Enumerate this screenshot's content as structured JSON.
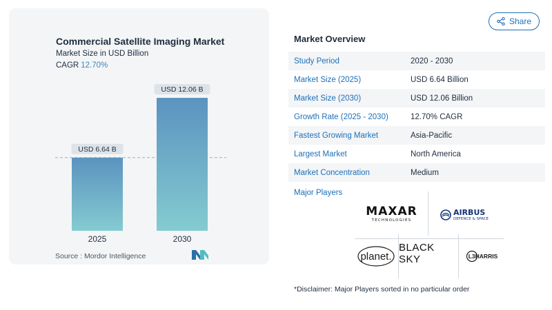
{
  "chart": {
    "title": "Commercial Satellite Imaging Market",
    "subtitle": "Market Size in USD Billion",
    "cagr_label": "CAGR",
    "cagr_value": "12.70%",
    "source": "Source :  Mordor Intelligence"
  },
  "chart_data": {
    "type": "bar",
    "title": "Commercial Satellite Imaging Market",
    "categories": [
      "2025",
      "2030"
    ],
    "values": [
      6.64,
      12.06
    ],
    "data_labels": [
      "USD 6.64 B",
      "USD 12.06 B"
    ],
    "ylabel": "Market Size in USD Billion",
    "ylim": [
      0,
      13.5
    ],
    "reference_line": 6.64,
    "colors": {
      "bar_top": "#5b93bf",
      "bar_bottom": "#84cbd1",
      "reference_line": "#8fb4cf"
    }
  },
  "share": {
    "label": "Share",
    "icon": "share-icon"
  },
  "overview": {
    "title": "Market Overview",
    "rows": [
      {
        "label": "Study Period",
        "value": "2020 - 2030"
      },
      {
        "label": "Market Size (2025)",
        "value": "USD 6.64 Billion"
      },
      {
        "label": "Market Size (2030)",
        "value": "USD 12.06 Billion"
      },
      {
        "label": "Growth Rate (2025 - 2030)",
        "value": "12.70% CAGR"
      },
      {
        "label": "Fastest Growing Market",
        "value": "Asia-Pacific"
      },
      {
        "label": "Largest Market",
        "value": "North America"
      },
      {
        "label": "Market Concentration",
        "value": "Medium"
      }
    ]
  },
  "players": {
    "title": "Major Players",
    "maxar": "MAXAR",
    "maxar_sub": "TECHNOLOGIES",
    "airbus": "AIRBUS",
    "airbus_sub": "DEFENCE & SPACE",
    "planet": "planet.",
    "blacksky": "BLACK SKY",
    "l3harris": "L3HARRIS"
  },
  "disclaimer": "*Disclaimer: Major Players sorted in no particular order",
  "colors": {
    "accent": "#1d6fb8",
    "card_bg": "#f3f5f7"
  }
}
